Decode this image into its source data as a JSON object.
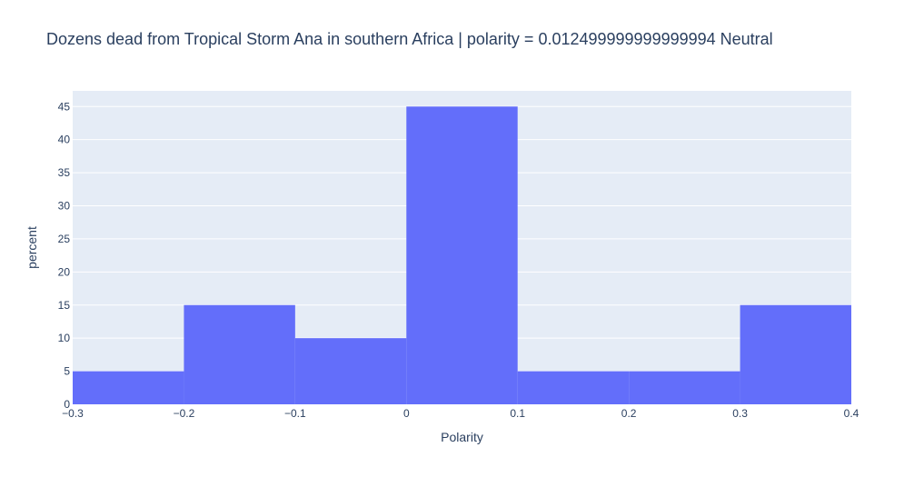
{
  "chart_data": {
    "type": "bar",
    "title": "Dozens dead from Tropical Storm Ana in southern Africa  | polarity = 0.012499999999999994 Neutral",
    "xlabel": "Polarity",
    "ylabel": "percent",
    "bins": [
      {
        "x0": -0.3,
        "x1": -0.2,
        "value": 5
      },
      {
        "x0": -0.2,
        "x1": -0.1,
        "value": 15
      },
      {
        "x0": -0.1,
        "x1": 0.0,
        "value": 10
      },
      {
        "x0": 0.0,
        "x1": 0.1,
        "value": 45
      },
      {
        "x0": 0.1,
        "x1": 0.2,
        "value": 5
      },
      {
        "x0": 0.2,
        "x1": 0.3,
        "value": 5
      },
      {
        "x0": 0.3,
        "x1": 0.4,
        "value": 15
      }
    ],
    "xlim": [
      -0.3,
      0.4
    ],
    "ylim": [
      0,
      47.37
    ],
    "x_ticks": [
      -0.3,
      -0.2,
      -0.1,
      0,
      0.1,
      0.2,
      0.3,
      0.4
    ],
    "x_tick_labels": [
      "−0.3",
      "−0.2",
      "−0.1",
      "0",
      "0.1",
      "0.2",
      "0.3",
      "0.4"
    ],
    "y_ticks": [
      0,
      5,
      10,
      15,
      20,
      25,
      30,
      35,
      40,
      45
    ],
    "y_tick_labels": [
      "0",
      "5",
      "10",
      "15",
      "20",
      "25",
      "30",
      "35",
      "40",
      "45"
    ],
    "grid": true,
    "colors": {
      "bar": "#636efa",
      "plot_bg": "#e5ecf6",
      "grid": "#ffffff",
      "text": "#2a3f5f"
    }
  }
}
